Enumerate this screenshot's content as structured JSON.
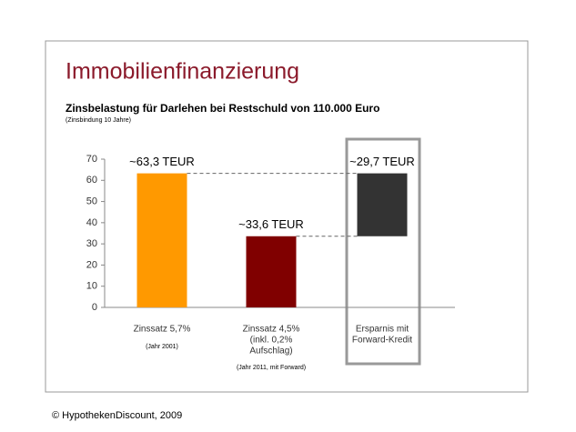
{
  "chart_data": {
    "type": "waterfall",
    "title": "Immobilienfinanzierung",
    "subtitle": "Zinsbelastung für Darlehen bei Restschuld von 110.000 Euro",
    "note": "(Zinsbindung 10 Jahre)",
    "categories": [
      [
        "Zinssatz 5,7%"
      ],
      [
        "Zinssatz 4,5%",
        "(inkl. 0,2%",
        "Aufschlag)"
      ],
      [
        "Ersparnis mit",
        "Forward-Kredit"
      ]
    ],
    "category_notes": [
      "(Jahr 2001)",
      "(Jahr 2011, mit Forward)"
    ],
    "values": [
      63.3,
      33.6,
      29.7
    ],
    "value_labels": [
      "~63,3 TEUR",
      "~33,6 TEUR",
      "~29,7 TEUR"
    ],
    "colors": [
      "#ff9900",
      "#800000",
      "#333333"
    ],
    "ylim": [
      0,
      70
    ],
    "yticks": [
      0,
      10,
      20,
      30,
      40,
      50,
      60,
      70
    ],
    "footer": "© HypothekenDiscount, 2009"
  }
}
